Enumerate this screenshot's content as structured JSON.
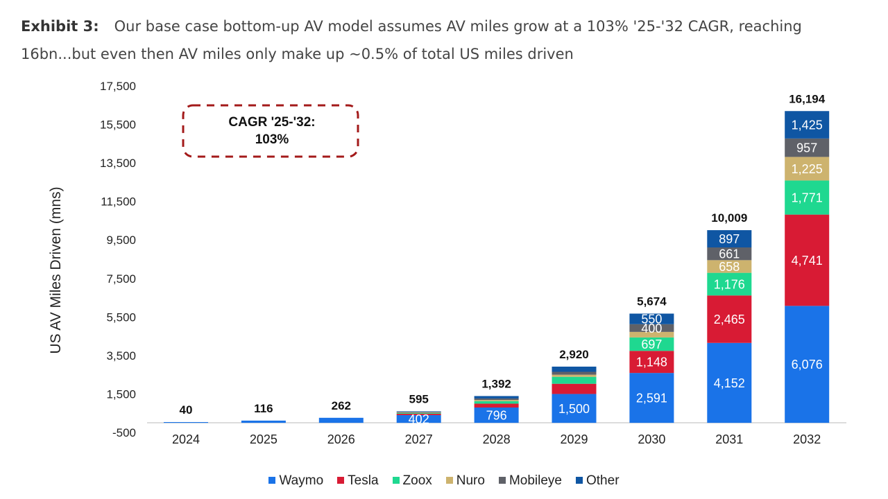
{
  "header": {
    "lead": "Exhibit 3:",
    "title": "Our base case bottom-up AV model assumes AV miles grow at a 103% '25-'32 CAGR, reaching 16bn...but even then AV miles only make up ~0.5% of total US miles driven"
  },
  "annotation": {
    "line1": "CAGR '25-'32:",
    "line2": "103%",
    "border_color": "#a31a1a"
  },
  "chart_data": {
    "type": "bar",
    "stacked": true,
    "title": "Our base case bottom-up AV model assumes AV miles grow at a 103% '25-'32 CAGR, reaching 16bn...but even then AV miles only make up ~0.5% of total US miles driven",
    "xlabel": "",
    "ylabel": "US AV Miles Driven (mns)",
    "ylim": [
      -500,
      17500
    ],
    "yticks": [
      -500,
      1500,
      3500,
      5500,
      7500,
      9500,
      11500,
      13500,
      15500,
      17500
    ],
    "ytick_labels": [
      "-500",
      "1,500",
      "3,500",
      "5,500",
      "7,500",
      "9,500",
      "11,500",
      "13,500",
      "15,500",
      "17,500"
    ],
    "grid": false,
    "legend_position": "bottom",
    "categories": [
      "2024",
      "2025",
      "2026",
      "2027",
      "2028",
      "2029",
      "2030",
      "2031",
      "2032"
    ],
    "totals": [
      40,
      116,
      262,
      595,
      1392,
      2920,
      5674,
      10009,
      16194
    ],
    "total_labels": [
      "40",
      "116",
      "262",
      "595",
      "1,392",
      "2,920",
      "5,674",
      "10,009",
      "16,194"
    ],
    "series": [
      {
        "name": "Waymo",
        "color": "#1a73e8",
        "values": [
          40,
          116,
          262,
          402,
          796,
          1500,
          2591,
          4152,
          6076
        ],
        "labels": [
          "",
          "",
          "",
          "402",
          "796",
          "1,500",
          "2,591",
          "4,152",
          "6,076"
        ]
      },
      {
        "name": "Tesla",
        "color": "#d81b34",
        "values": [
          0,
          0,
          0,
          70,
          200,
          530,
          1148,
          2465,
          4741
        ],
        "labels": [
          "",
          "",
          "",
          "",
          "",
          "",
          "1,148",
          "2,465",
          "4,741"
        ]
      },
      {
        "name": "Zoox",
        "color": "#1fd890",
        "values": [
          0,
          0,
          0,
          40,
          130,
          360,
          697,
          1176,
          1771
        ],
        "labels": [
          "",
          "",
          "",
          "",
          "",
          "",
          "697",
          "1,176",
          "1,771"
        ]
      },
      {
        "name": "Nuro",
        "color": "#cdb36e",
        "values": [
          0,
          0,
          0,
          25,
          60,
          110,
          288,
          658,
          1225
        ],
        "labels": [
          "",
          "",
          "",
          "",
          "",
          "",
          "",
          "658",
          "1,225"
        ]
      },
      {
        "name": "Mobileye",
        "color": "#5f6168",
        "values": [
          0,
          0,
          0,
          28,
          80,
          150,
          400,
          661,
          957
        ],
        "labels": [
          "",
          "",
          "",
          "",
          "",
          "",
          "400",
          "661",
          "957"
        ]
      },
      {
        "name": "Other",
        "color": "#0f56a3",
        "values": [
          0,
          0,
          0,
          30,
          126,
          270,
          550,
          897,
          1425
        ],
        "labels": [
          "",
          "",
          "",
          "",
          "",
          "",
          "550",
          "897",
          "1,425"
        ]
      }
    ]
  }
}
